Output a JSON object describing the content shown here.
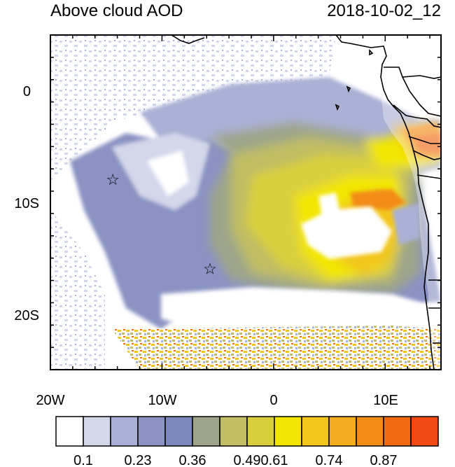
{
  "title": "Above cloud AOD",
  "timestamp": "2018-10-02_12",
  "map": {
    "lon_range": [
      -20,
      15
    ],
    "lat_range": [
      -25,
      5
    ],
    "x_ticks": [
      {
        "lon": -20,
        "label": "20W"
      },
      {
        "lon": -10,
        "label": "10W"
      },
      {
        "lon": 0,
        "label": "0"
      },
      {
        "lon": 10,
        "label": "10E"
      }
    ],
    "y_ticks": [
      {
        "lat": 0,
        "label": "0"
      },
      {
        "lat": -10,
        "label": "10S"
      },
      {
        "lat": -20,
        "label": "20S"
      }
    ],
    "markers": [
      {
        "name": "star-marker-1",
        "lon": -14.4,
        "lat": -8.0,
        "symbol": "☆"
      },
      {
        "name": "star-marker-2",
        "lon": -5.7,
        "lat": -16.0,
        "symbol": "☆"
      }
    ]
  },
  "colorbar": {
    "colors": [
      "#ffffff",
      "#d3d7ea",
      "#aab0d6",
      "#8a93c3",
      "#7d88bc",
      "#9ea58a",
      "#c0bd63",
      "#d9cf3c",
      "#f2e600",
      "#f2c61c",
      "#f2ad1f",
      "#f28c17",
      "#f26b12",
      "#f24a12"
    ],
    "labels": [
      {
        "value": "0.1",
        "index": 1
      },
      {
        "value": "0.23",
        "index": 3
      },
      {
        "value": "0.36",
        "index": 5
      },
      {
        "value": "0.49",
        "index": 7
      },
      {
        "value": "0.61",
        "index": 8
      },
      {
        "value": "0.74",
        "index": 10
      },
      {
        "value": "0.87",
        "index": 12
      }
    ]
  }
}
